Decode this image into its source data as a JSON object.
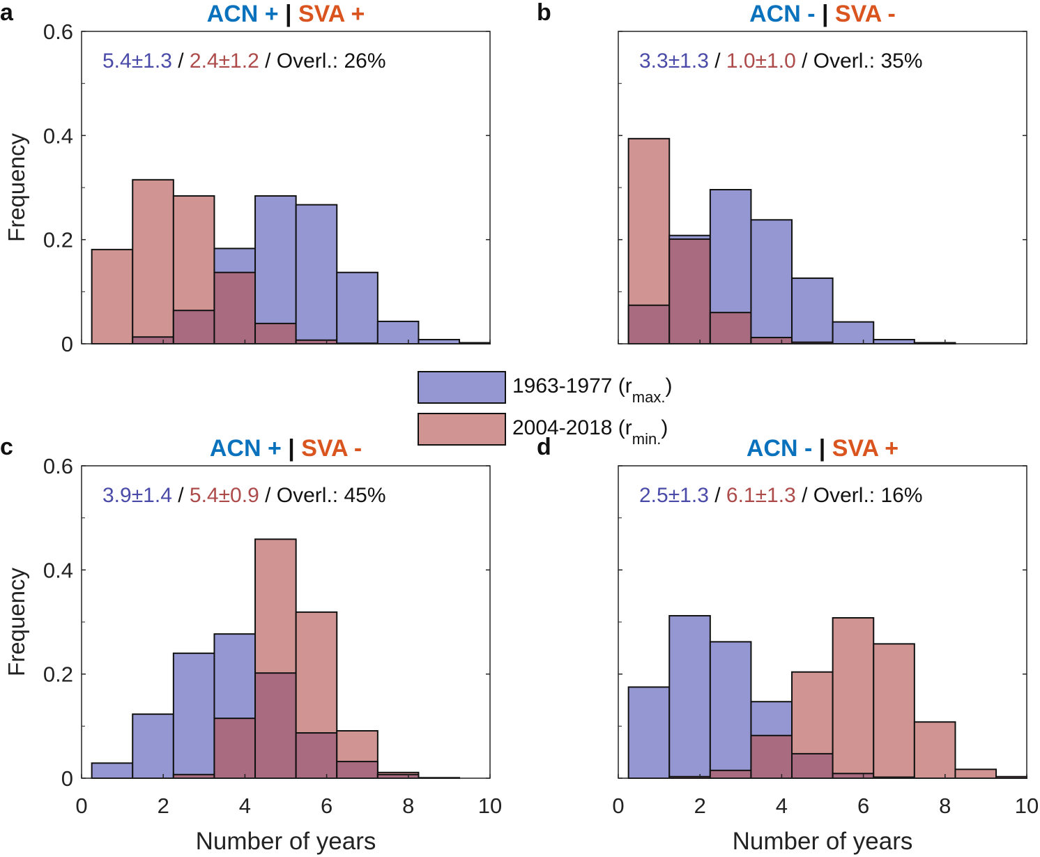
{
  "chart_data": [
    {
      "panel": "a",
      "title_left": "ACN +",
      "title_sep": "|",
      "title_right": "SVA +",
      "type": "bar",
      "annotation": {
        "blue": "5.4±1.3",
        "sep1": " / ",
        "red": "2.4±1.2",
        "rest": " / Overl.: 26%"
      },
      "ylabel": "Frequency",
      "xlabel": "",
      "show_yticks": true,
      "show_xticks": false,
      "bin_edges": [
        0.25,
        1.25,
        2.25,
        3.25,
        4.25,
        5.25,
        6.25,
        7.25,
        8.25,
        9.25,
        10
      ],
      "series": [
        {
          "name": "1963-1977 (r max.)",
          "values": [
            0,
            0.013,
            0.064,
            0.183,
            0.284,
            0.267,
            0.137,
            0.043,
            0.008,
            0.002
          ]
        },
        {
          "name": "2004-2018 (r min.)",
          "values": [
            0.181,
            0.315,
            0.284,
            0.137,
            0.039,
            0.007,
            0.001,
            0,
            0,
            0
          ]
        }
      ]
    },
    {
      "panel": "b",
      "title_left": "ACN -",
      "title_sep": "|",
      "title_right": "SVA -",
      "type": "bar",
      "annotation": {
        "blue": "3.3±1.3",
        "sep1": " / ",
        "red": "1.0±1.0",
        "rest": " / Overl.: 35%"
      },
      "ylabel": "",
      "xlabel": "",
      "show_yticks": false,
      "show_xticks": false,
      "bin_edges": [
        0.25,
        1.25,
        2.25,
        3.25,
        4.25,
        5.25,
        6.25,
        7.25,
        8.25,
        9.25,
        10
      ],
      "series": [
        {
          "name": "1963-1977 (r max.)",
          "values": [
            0.074,
            0.208,
            0.296,
            0.238,
            0.126,
            0.042,
            0.008,
            0.002,
            0,
            0
          ]
        },
        {
          "name": "2004-2018 (r min.)",
          "values": [
            0.394,
            0.201,
            0.06,
            0.012,
            0.003,
            0,
            0,
            0,
            0,
            0
          ]
        }
      ]
    },
    {
      "panel": "c",
      "title_left": "ACN +",
      "title_sep": "|",
      "title_right": "SVA -",
      "type": "bar",
      "annotation": {
        "blue": "3.9±1.4",
        "sep1": " / ",
        "red": "5.4±0.9",
        "rest": " / Overl.: 45%"
      },
      "ylabel": "Frequency",
      "xlabel": "Number of years",
      "show_yticks": true,
      "show_xticks": true,
      "bin_edges": [
        0.25,
        1.25,
        2.25,
        3.25,
        4.25,
        5.25,
        6.25,
        7.25,
        8.25,
        9.25,
        10
      ],
      "series": [
        {
          "name": "1963-1977 (r max.)",
          "values": [
            0.029,
            0.123,
            0.24,
            0.277,
            0.202,
            0.087,
            0.032,
            0.007,
            0,
            0
          ]
        },
        {
          "name": "2004-2018 (r min.)",
          "values": [
            0,
            0,
            0.007,
            0.115,
            0.459,
            0.319,
            0.091,
            0.011,
            0.001,
            0
          ]
        }
      ]
    },
    {
      "panel": "d",
      "title_left": "ACN -",
      "title_sep": "|",
      "title_right": "SVA +",
      "type": "bar",
      "annotation": {
        "blue": "2.5±1.3",
        "sep1": " / ",
        "red": "6.1±1.3",
        "rest": " / Overl.: 16%"
      },
      "ylabel": "",
      "xlabel": "Number of years",
      "show_yticks": false,
      "show_xticks": true,
      "bin_edges": [
        0.25,
        1.25,
        2.25,
        3.25,
        4.25,
        5.25,
        6.25,
        7.25,
        8.25,
        9.25,
        10
      ],
      "series": [
        {
          "name": "1963-1977 (r max.)",
          "values": [
            0.175,
            0.312,
            0.262,
            0.147,
            0.047,
            0.009,
            0.002,
            0,
            0,
            0
          ]
        },
        {
          "name": "2004-2018 (r min.)",
          "values": [
            0,
            0.003,
            0.015,
            0.082,
            0.204,
            0.308,
            0.258,
            0.108,
            0.017,
            0.003
          ]
        }
      ]
    }
  ],
  "axes": {
    "xlim": [
      0,
      10
    ],
    "ylim": [
      0,
      0.6
    ],
    "xticks": [
      "0",
      "2",
      "4",
      "6",
      "8",
      "10"
    ],
    "yticks": [
      "0",
      "0.2",
      "0.4",
      "0.6"
    ],
    "grid": false
  },
  "legend": {
    "placement": "center",
    "items": [
      {
        "label": "1963-1977 (r",
        "sub": "max.",
        "close": ")"
      },
      {
        "label": "2004-2018 (r",
        "sub": "min.",
        "close": ")"
      }
    ]
  },
  "colors": {
    "blue": "#9597d2",
    "red": "#d09593",
    "overlap": "#a86b80",
    "acn": "#0a72bd",
    "sva": "#d9541e",
    "anno_blue": "#4a4aa8",
    "anno_red": "#ad4a4a"
  }
}
